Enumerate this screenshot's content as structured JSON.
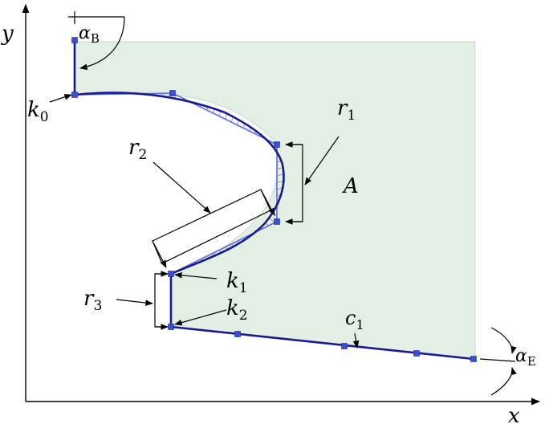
{
  "labels": {
    "y_axis": "y",
    "x_axis": "x",
    "alpha_B": {
      "main": "α",
      "sub": "B"
    },
    "alpha_E": {
      "main": "α",
      "sub": "E"
    },
    "k0": {
      "main": "k",
      "sub": "0"
    },
    "k1": {
      "main": "k",
      "sub": "1"
    },
    "k2": {
      "main": "k",
      "sub": "2"
    },
    "r1": {
      "main": "r",
      "sub": "1"
    },
    "r2": {
      "main": "r",
      "sub": "2"
    },
    "r3": {
      "main": "r",
      "sub": "3"
    },
    "c1": {
      "main": "c",
      "sub": "1"
    },
    "A": "A"
  },
  "colors": {
    "region_fill": "#e3efe3",
    "region_stroke": "#c9d9c9",
    "curve": "#1a1a8c",
    "control_polygon": "#5a6fe0",
    "control_nodes": "#3a4fd0",
    "hatch": "#8a8f8a"
  }
}
